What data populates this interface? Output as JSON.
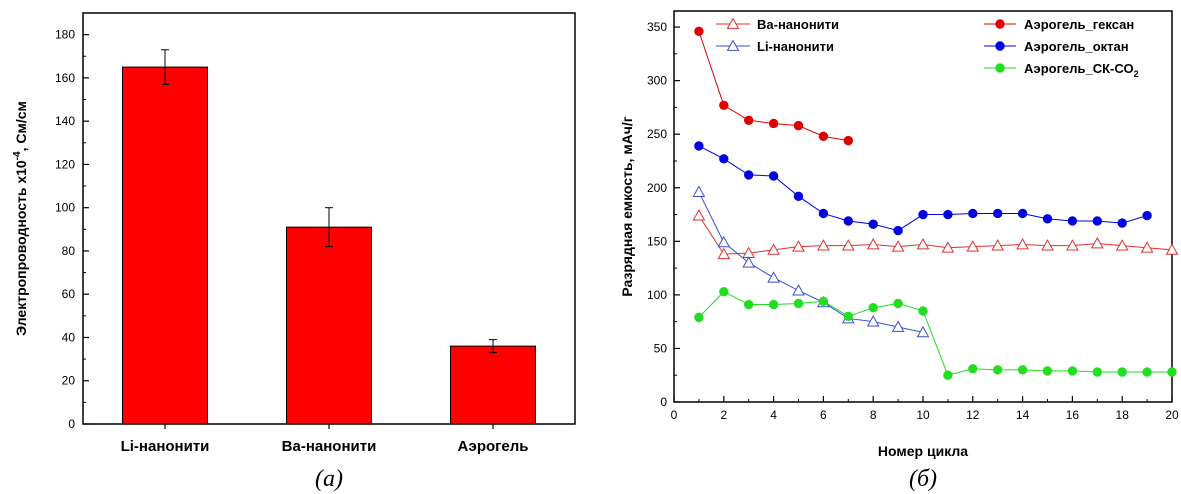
{
  "chart_data": [
    {
      "type": "bar",
      "caption": "(а)",
      "ylabel_main": "Электропроводность х10",
      "ylabel_exp": "-4",
      "ylabel_unit": ", См/см",
      "xlabel": "",
      "ylim": [
        0,
        180
      ],
      "yticks": [
        0,
        20,
        40,
        60,
        80,
        100,
        120,
        140,
        160,
        180
      ],
      "categories": [
        "Li-нанонити",
        "Ba-нанонити",
        "Аэрогель"
      ],
      "values": [
        165,
        91,
        36
      ],
      "errors": [
        8,
        9,
        3
      ],
      "color": "#ff0000"
    },
    {
      "type": "line",
      "caption": "(б)",
      "xlabel": "Номер цикла",
      "ylabel": "Разрядная емкость, мАч/г",
      "xlim": [
        0,
        20
      ],
      "ylim": [
        0,
        350
      ],
      "xticks": [
        0,
        2,
        4,
        6,
        8,
        10,
        12,
        14,
        16,
        18,
        20
      ],
      "yticks": [
        0,
        50,
        100,
        150,
        200,
        250,
        300,
        350
      ],
      "series": [
        {
          "name": "Ba-нанонити",
          "marker": "triangle-open",
          "color": "#e03030",
          "x": [
            1,
            2,
            3,
            4,
            5,
            6,
            7,
            8,
            9,
            10,
            11,
            12,
            13,
            14,
            15,
            16,
            17,
            18,
            19,
            20
          ],
          "y": [
            174,
            138,
            139,
            142,
            145,
            146,
            146,
            147,
            145,
            147,
            144,
            145,
            146,
            147,
            146,
            146,
            148,
            146,
            144,
            142
          ]
        },
        {
          "name": "Li-нанонити",
          "marker": "triangle-open",
          "color": "#3a4fd0",
          "x": [
            1,
            2,
            3,
            4,
            5,
            6,
            7,
            8,
            9,
            10
          ],
          "y": [
            196,
            149,
            130,
            116,
            104,
            93,
            78,
            75,
            70,
            65
          ]
        },
        {
          "name": "Аэрогель_гексан",
          "marker": "circle",
          "color": "#e00000",
          "x": [
            1,
            2,
            3,
            4,
            5,
            6,
            7
          ],
          "y": [
            346,
            277,
            263,
            260,
            258,
            248,
            244
          ]
        },
        {
          "name": "Аэрогель_октан",
          "marker": "circle",
          "color": "#0000e0",
          "x": [
            1,
            2,
            3,
            4,
            5,
            6,
            7,
            8,
            9,
            10,
            11,
            12,
            13,
            14,
            15,
            16,
            17,
            18,
            19
          ],
          "y": [
            239,
            227,
            212,
            211,
            192,
            176,
            169,
            166,
            160,
            175,
            175,
            176,
            176,
            176,
            171,
            169,
            169,
            167,
            174
          ]
        },
        {
          "name": "Аэрогель_СК-СО",
          "name_sub": "2",
          "marker": "circle",
          "color": "#22dd22",
          "x": [
            1,
            2,
            3,
            4,
            5,
            6,
            7,
            8,
            9,
            10,
            11,
            12,
            13,
            14,
            15,
            16,
            17,
            18,
            19,
            20
          ],
          "y": [
            79,
            103,
            91,
            91,
            92,
            94,
            80,
            88,
            92,
            85,
            25,
            31,
            30,
            30,
            29,
            29,
            28,
            28,
            28,
            28
          ]
        }
      ]
    }
  ]
}
